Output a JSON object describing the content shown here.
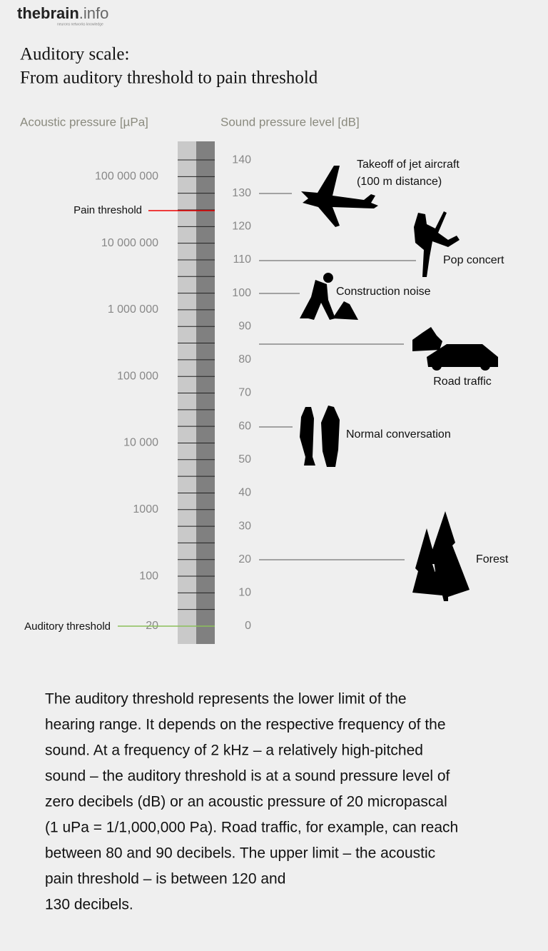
{
  "logo": {
    "name": "thebrain",
    "suffix": ".info",
    "tagline": "neurons networks knowledge"
  },
  "title": [
    "Auditory scale:",
    "From auditory threshold to pain threshold"
  ],
  "scale": {
    "left_header": "Acoustic pressure [µPa]",
    "right_header": "Sound pressure level [dB]",
    "db_ticks": [
      0,
      10,
      20,
      30,
      40,
      50,
      60,
      70,
      80,
      90,
      100,
      110,
      120,
      130,
      140
    ],
    "pressure_labels": [
      "100 000 000",
      "10 000 000",
      "1 000 000",
      "100 000",
      "10 000",
      "1000",
      "100"
    ],
    "pain_threshold": "Pain threshold",
    "auditory_threshold": "Auditory threshold",
    "auditory_threshold_pressure": "20"
  },
  "events": [
    {
      "label": [
        "Takeoff of jet aircraft",
        "(100 m distance)"
      ]
    },
    {
      "label": [
        "Pop concert"
      ]
    },
    {
      "label": [
        "Construction noise"
      ]
    },
    {
      "label": [
        "Road traffic"
      ]
    },
    {
      "label": [
        "Normal conversation"
      ]
    },
    {
      "label": [
        "Forest"
      ]
    }
  ],
  "paragraph": [
    "The auditory threshold represents the lower limit of the",
    "hearing range. It depends on the respective frequency of the",
    "sound. At a frequency of 2 kHz – a relatively high-pitched",
    "sound – the auditory threshold is at a sound pressure level of",
    "zero decibels (dB) or an acoustic pressure of 20 micropascal",
    "(1 uPa = 1/1,000,000 Pa). Road traffic, for example, can reach",
    "between 80 and 90 decibels. The upper limit – the acoustic",
    "pain threshold – is between 120 and",
    "130 decibels."
  ]
}
